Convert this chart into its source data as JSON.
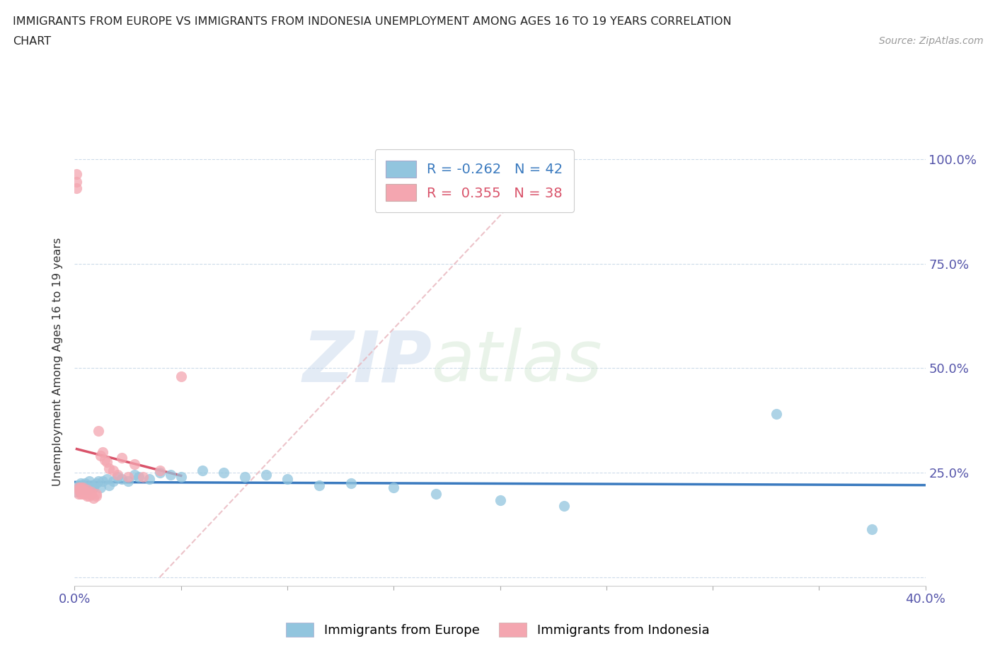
{
  "title_line1": "IMMIGRANTS FROM EUROPE VS IMMIGRANTS FROM INDONESIA UNEMPLOYMENT AMONG AGES 16 TO 19 YEARS CORRELATION",
  "title_line2": "CHART",
  "source_text": "Source: ZipAtlas.com",
  "ylabel": "Unemployment Among Ages 16 to 19 years",
  "xlim": [
    0.0,
    0.4
  ],
  "ylim": [
    -0.02,
    1.05
  ],
  "europe_color": "#92c5de",
  "indonesia_color": "#f4a6b0",
  "europe_line_color": "#3a7abf",
  "indonesia_line_color": "#d9536a",
  "dashed_line_color": "#e8b4bc",
  "watermark_zip": "ZIP",
  "watermark_atlas": "atlas",
  "europe_x": [
    0.001,
    0.002,
    0.002,
    0.003,
    0.003,
    0.004,
    0.004,
    0.005,
    0.005,
    0.006,
    0.007,
    0.008,
    0.009,
    0.01,
    0.011,
    0.012,
    0.013,
    0.015,
    0.016,
    0.018,
    0.02,
    0.022,
    0.025,
    0.028,
    0.03,
    0.035,
    0.04,
    0.045,
    0.05,
    0.06,
    0.07,
    0.08,
    0.09,
    0.1,
    0.115,
    0.13,
    0.15,
    0.17,
    0.2,
    0.23,
    0.33,
    0.375
  ],
  "europe_y": [
    0.205,
    0.22,
    0.215,
    0.21,
    0.225,
    0.215,
    0.22,
    0.215,
    0.225,
    0.21,
    0.23,
    0.22,
    0.215,
    0.225,
    0.23,
    0.215,
    0.23,
    0.235,
    0.22,
    0.23,
    0.24,
    0.235,
    0.23,
    0.245,
    0.24,
    0.235,
    0.25,
    0.245,
    0.24,
    0.255,
    0.25,
    0.24,
    0.245,
    0.235,
    0.22,
    0.225,
    0.215,
    0.2,
    0.185,
    0.17,
    0.39,
    0.115
  ],
  "indonesia_x": [
    0.001,
    0.001,
    0.001,
    0.002,
    0.002,
    0.002,
    0.003,
    0.003,
    0.003,
    0.003,
    0.004,
    0.004,
    0.004,
    0.005,
    0.005,
    0.006,
    0.006,
    0.006,
    0.007,
    0.008,
    0.008,
    0.009,
    0.01,
    0.01,
    0.011,
    0.012,
    0.013,
    0.014,
    0.015,
    0.016,
    0.018,
    0.02,
    0.022,
    0.025,
    0.028,
    0.032,
    0.04,
    0.05
  ],
  "indonesia_y": [
    0.965,
    0.945,
    0.93,
    0.2,
    0.21,
    0.215,
    0.2,
    0.205,
    0.21,
    0.215,
    0.2,
    0.21,
    0.215,
    0.2,
    0.205,
    0.195,
    0.205,
    0.21,
    0.195,
    0.2,
    0.205,
    0.19,
    0.195,
    0.2,
    0.35,
    0.29,
    0.3,
    0.28,
    0.275,
    0.26,
    0.255,
    0.245,
    0.285,
    0.24,
    0.27,
    0.24,
    0.255,
    0.48
  ]
}
